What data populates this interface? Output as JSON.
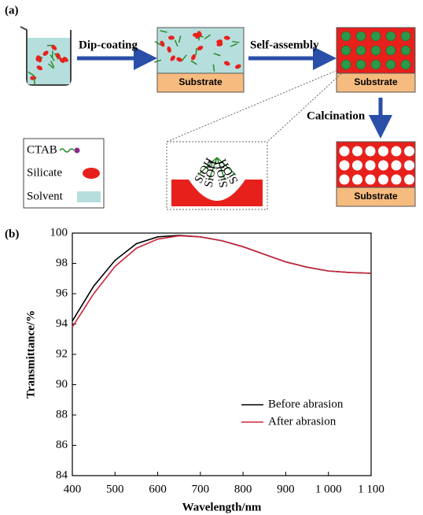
{
  "diagram": {
    "panel_label": "(a)",
    "steps": [
      "Dip-coating",
      "Self-assembly",
      "Calcination"
    ],
    "substrates": [
      "Substrate",
      "Substrate",
      "Substrate"
    ],
    "legend": [
      "CTAB",
      "Silicate",
      "Solvent"
    ],
    "hydroxyl_labels": [
      "SiOH",
      "SiOH",
      "SiOH",
      "SiOH"
    ]
  },
  "chart_data": {
    "type": "line",
    "panel_label": "(b)",
    "x_label": "Wavelength/nm",
    "y_label": "Transmittance/%",
    "x": [
      400,
      450,
      500,
      550,
      600,
      650,
      700,
      750,
      800,
      850,
      900,
      950,
      1000,
      1050,
      1100
    ],
    "series": [
      {
        "name": "Before abrasion",
        "color": "#000000",
        "values": [
          94.2,
          96.5,
          98.2,
          99.3,
          99.75,
          99.85,
          99.75,
          99.5,
          99.1,
          98.6,
          98.1,
          97.75,
          97.5,
          97.4,
          97.35
        ]
      },
      {
        "name": "After abrasion",
        "color": "#c8283c",
        "values": [
          93.8,
          96.0,
          97.8,
          99.0,
          99.6,
          99.82,
          99.75,
          99.5,
          99.1,
          98.6,
          98.1,
          97.75,
          97.5,
          97.4,
          97.35
        ]
      }
    ],
    "xlim": [
      400,
      1100
    ],
    "ylim": [
      84,
      100
    ],
    "xticks": [
      400,
      500,
      600,
      700,
      800,
      900,
      {
        "value": 1000,
        "label": "1 000"
      },
      {
        "value": 1100,
        "label": "1 100"
      }
    ],
    "yticks": [
      84,
      86,
      88,
      90,
      92,
      94,
      96,
      98,
      100
    ],
    "grid": false,
    "legend_position": "lower-right"
  }
}
